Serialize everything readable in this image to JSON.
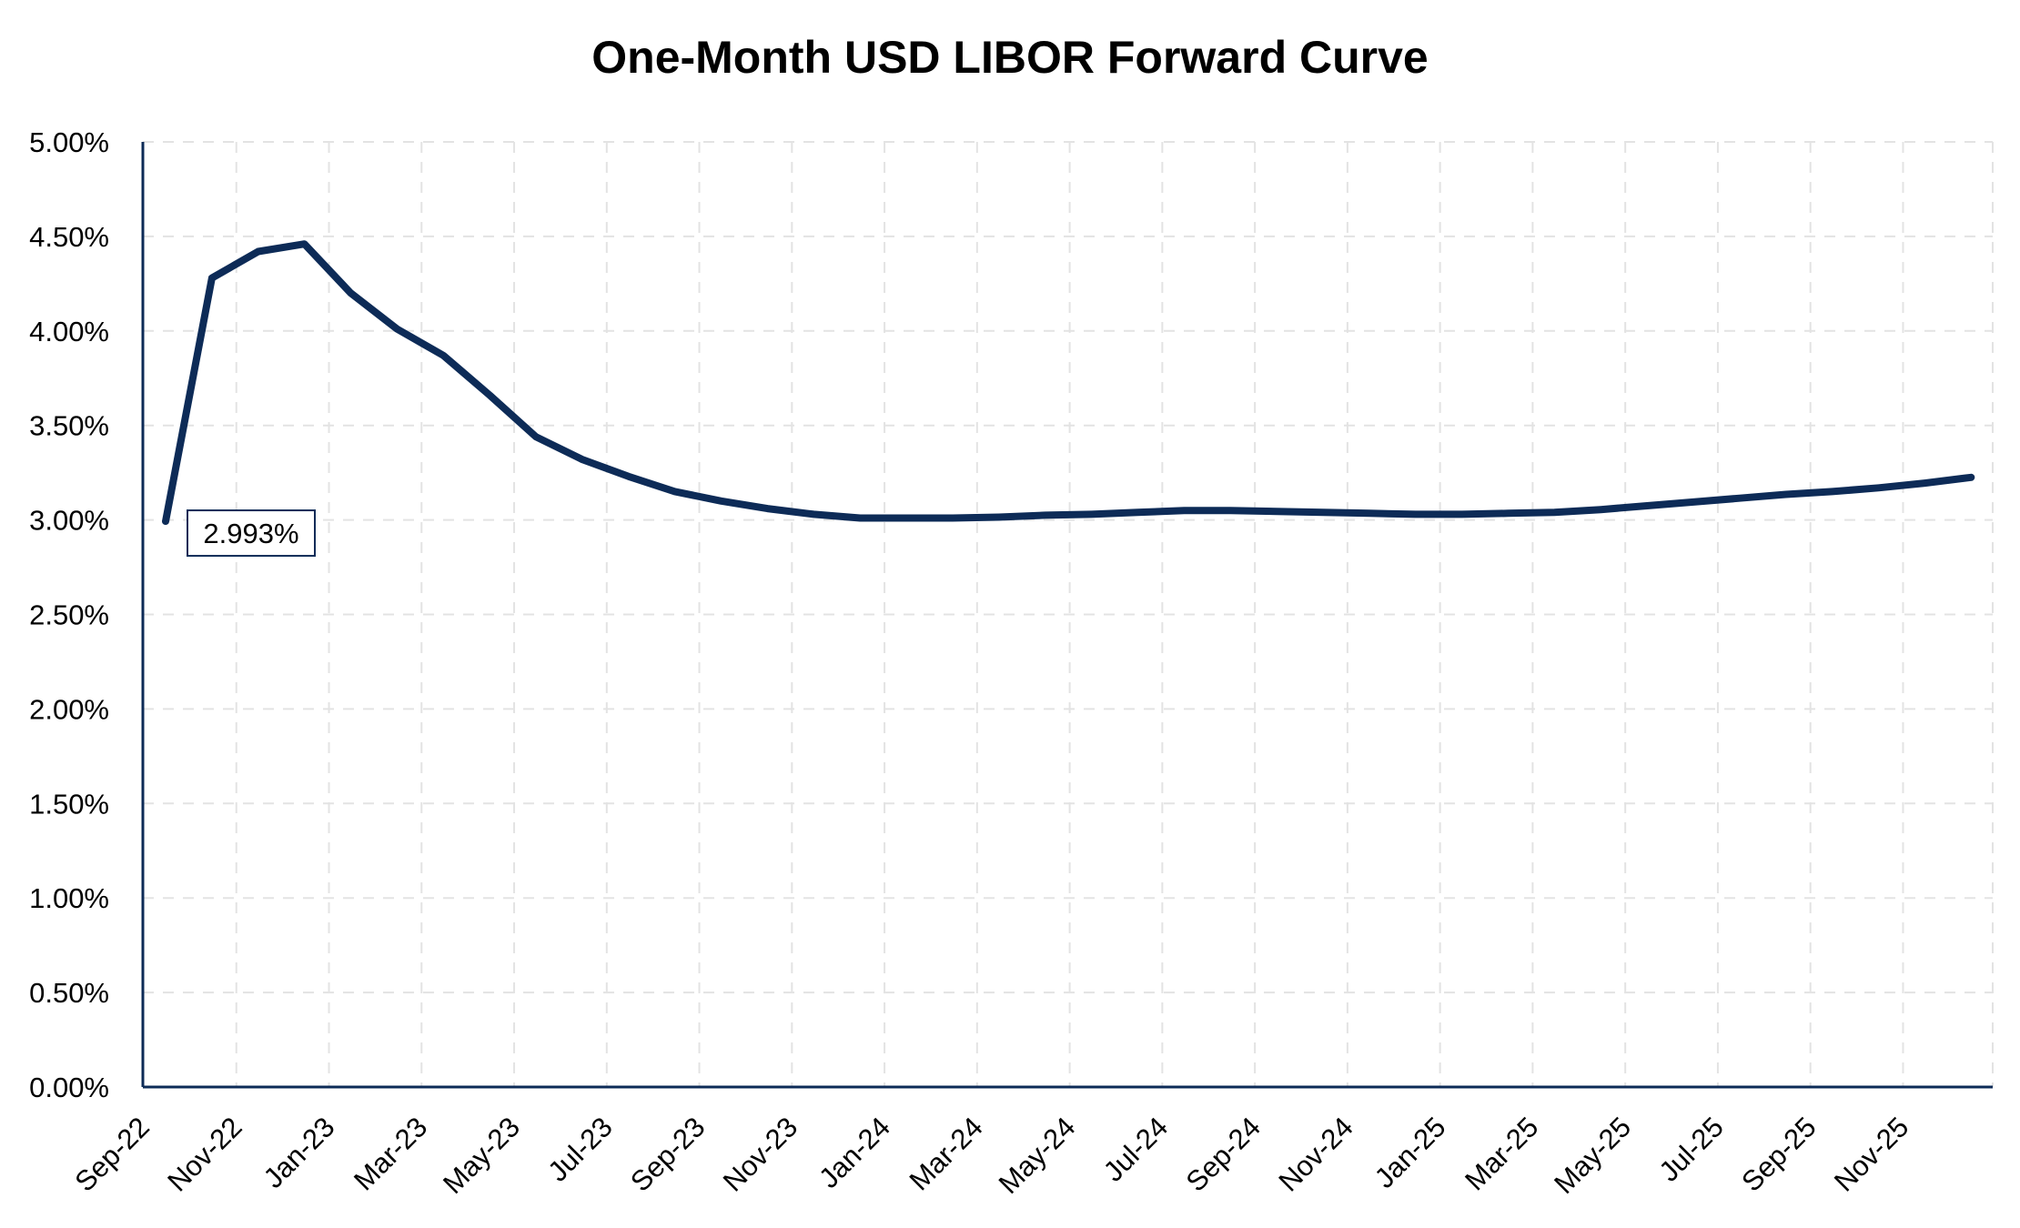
{
  "chart_data": {
    "type": "line",
    "title": "One-Month USD LIBOR Forward Curve",
    "xlabel": "",
    "ylabel": "",
    "ylim": [
      0,
      5
    ],
    "yticks": [
      "0.00%",
      "0.50%",
      "1.00%",
      "1.50%",
      "2.00%",
      "2.50%",
      "3.00%",
      "3.50%",
      "4.00%",
      "4.50%",
      "5.00%"
    ],
    "xticks": [
      "Sep-22",
      "Nov-22",
      "Jan-23",
      "Mar-23",
      "May-23",
      "Jul-23",
      "Sep-23",
      "Nov-23",
      "Jan-24",
      "Mar-24",
      "May-24",
      "Jul-24",
      "Sep-24",
      "Nov-24",
      "Jan-25",
      "Mar-25",
      "May-25",
      "Jul-25",
      "Sep-25",
      "Nov-25"
    ],
    "grid": true,
    "line_color": "#0d2b57",
    "series": [
      {
        "x": [
          "Sep-22",
          "Oct-22",
          "Nov-22",
          "Dec-22",
          "Jan-23",
          "Feb-23",
          "Mar-23",
          "Apr-23",
          "May-23",
          "Jun-23",
          "Jul-23",
          "Aug-23",
          "Sep-23",
          "Oct-23",
          "Nov-23",
          "Dec-23",
          "Jan-24",
          "Feb-24",
          "Mar-24",
          "Apr-24",
          "May-24",
          "Jun-24",
          "Jul-24",
          "Aug-24",
          "Sep-24",
          "Oct-24",
          "Nov-24",
          "Dec-24",
          "Jan-25",
          "Feb-25",
          "Mar-25",
          "Apr-25",
          "May-25",
          "Jun-25",
          "Jul-25",
          "Aug-25",
          "Sep-25",
          "Oct-25",
          "Nov-25",
          "Dec-25"
        ],
        "values": [
          2.993,
          4.28,
          4.42,
          4.46,
          4.2,
          4.01,
          3.87,
          3.66,
          3.44,
          3.32,
          3.23,
          3.15,
          3.1,
          3.06,
          3.03,
          3.01,
          3.01,
          3.01,
          3.015,
          3.025,
          3.03,
          3.04,
          3.05,
          3.05,
          3.045,
          3.04,
          3.035,
          3.03,
          3.03,
          3.035,
          3.04,
          3.055,
          3.075,
          3.095,
          3.115,
          3.135,
          3.15,
          3.17,
          3.195,
          3.225
        ]
      }
    ],
    "annotations": [
      {
        "text": "2.993%",
        "x": "Sep-22",
        "value": 2.993
      }
    ]
  }
}
